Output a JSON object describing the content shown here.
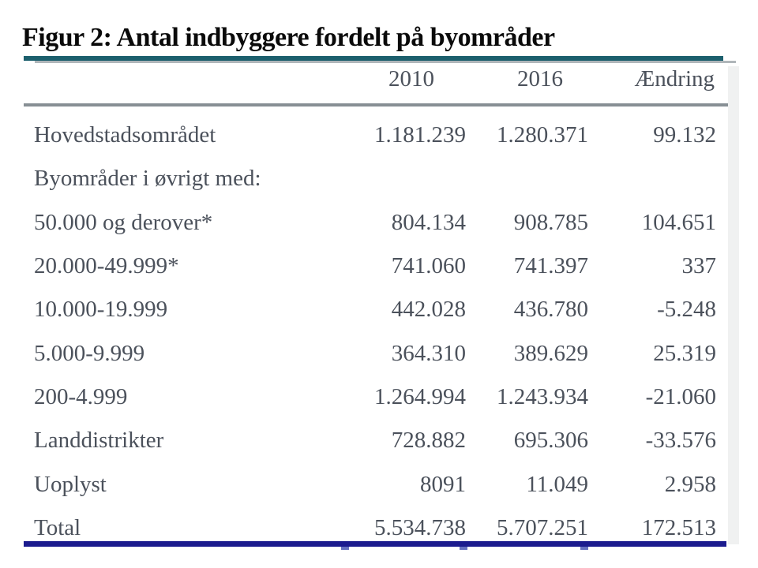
{
  "figure": {
    "title": "Figur 2: Antal indbyggere fordelt på byområder",
    "table": {
      "columns": [
        "2010",
        "2016",
        "Ændring"
      ],
      "rows": [
        {
          "label": "Hovedstadsområdet",
          "values": [
            "1.181.239",
            "1.280.371",
            "99.132"
          ]
        },
        {
          "label": "Byområder i øvrigt med:",
          "values": [
            "",
            "",
            ""
          ]
        },
        {
          "label": "50.000 og derover*",
          "values": [
            "804.134",
            "908.785",
            "104.651"
          ]
        },
        {
          "label": "20.000-49.999*",
          "values": [
            "741.060",
            "741.397",
            "337"
          ]
        },
        {
          "label": "10.000-19.999",
          "values": [
            "442.028",
            "436.780",
            "-5.248"
          ]
        },
        {
          "label": "5.000-9.999",
          "values": [
            "364.310",
            "389.629",
            "25.319"
          ]
        },
        {
          "label": "200-4.999",
          "values": [
            "1.264.994",
            "1.243.934",
            "-21.060"
          ]
        },
        {
          "label": "Landdistrikter",
          "values": [
            "728.882",
            "695.306",
            "-33.576"
          ]
        },
        {
          "label": "Uoplyst",
          "values": [
            "8091",
            "11.049",
            "2.958"
          ]
        },
        {
          "label": "Total",
          "values": [
            "5.534.738",
            "5.707.251",
            "172.513"
          ]
        }
      ]
    }
  },
  "colors": {
    "title_text": "#0a0a0a",
    "body_text": "#4b515b",
    "teal_rule": "#1c5f6d",
    "teal_rule_shadow": "#b0b6ba",
    "header_rule": "#878f94",
    "bottom_rule": "#1b1b8e",
    "tick_mark": "#6671c0",
    "edge_strip": "#f0f1f1"
  }
}
